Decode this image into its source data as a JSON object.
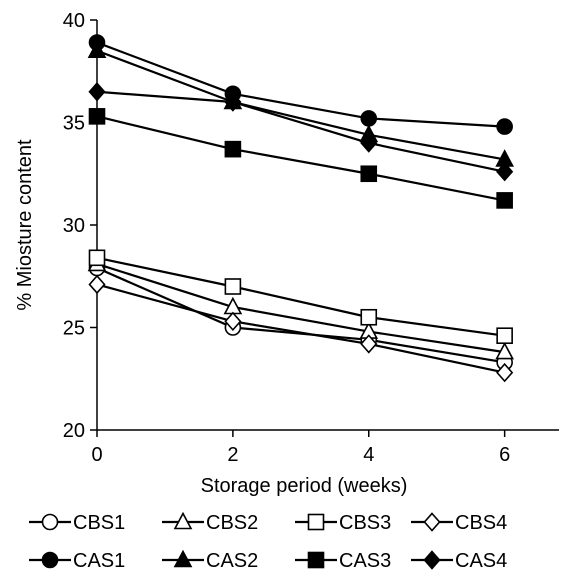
{
  "chart_data": {
    "type": "line",
    "title": "",
    "xlabel": "Storage period (weeks)",
    "ylabel": "% Miosture content",
    "x": [
      0,
      2,
      4,
      6
    ],
    "x_ticks": [
      "0",
      "2",
      "4",
      "6"
    ],
    "y_ticks": [
      "20",
      "25",
      "30",
      "35",
      "40"
    ],
    "xlim": [
      0,
      6.8
    ],
    "ylim": [
      20,
      40
    ],
    "grid": false,
    "legend_position": "bottom",
    "series": [
      {
        "name": "CBS1",
        "marker": "circle",
        "filled": false,
        "values": [
          27.9,
          25.0,
          24.4,
          23.3
        ]
      },
      {
        "name": "CBS2",
        "marker": "triangle",
        "filled": false,
        "values": [
          28.1,
          26.0,
          24.8,
          23.8
        ]
      },
      {
        "name": "CBS3",
        "marker": "square",
        "filled": false,
        "values": [
          28.4,
          27.0,
          25.5,
          24.6
        ]
      },
      {
        "name": "CBS4",
        "marker": "diamond",
        "filled": false,
        "values": [
          27.1,
          25.3,
          24.2,
          22.8
        ]
      },
      {
        "name": "CAS1",
        "marker": "circle",
        "filled": true,
        "values": [
          38.9,
          36.4,
          35.2,
          34.8
        ]
      },
      {
        "name": "CAS2",
        "marker": "triangle",
        "filled": true,
        "values": [
          38.5,
          36.0,
          34.4,
          33.2
        ]
      },
      {
        "name": "CAS3",
        "marker": "square",
        "filled": true,
        "values": [
          35.3,
          33.7,
          32.5,
          31.2
        ]
      },
      {
        "name": "CAS4",
        "marker": "diamond",
        "filled": true,
        "values": [
          36.5,
          36.0,
          34.0,
          32.6
        ]
      }
    ]
  }
}
